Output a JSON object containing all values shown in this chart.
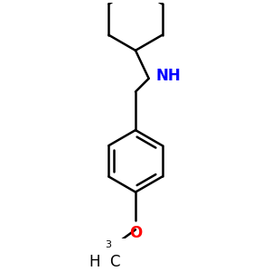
{
  "bg_color": "#ffffff",
  "line_color": "#000000",
  "nh_color": "#0000ff",
  "o_color": "#ff0000",
  "line_width": 1.8,
  "figsize": [
    3.0,
    3.0
  ],
  "dpi": 100,
  "xlim": [
    -1.2,
    1.2
  ],
  "ylim": [
    -1.5,
    1.7
  ]
}
